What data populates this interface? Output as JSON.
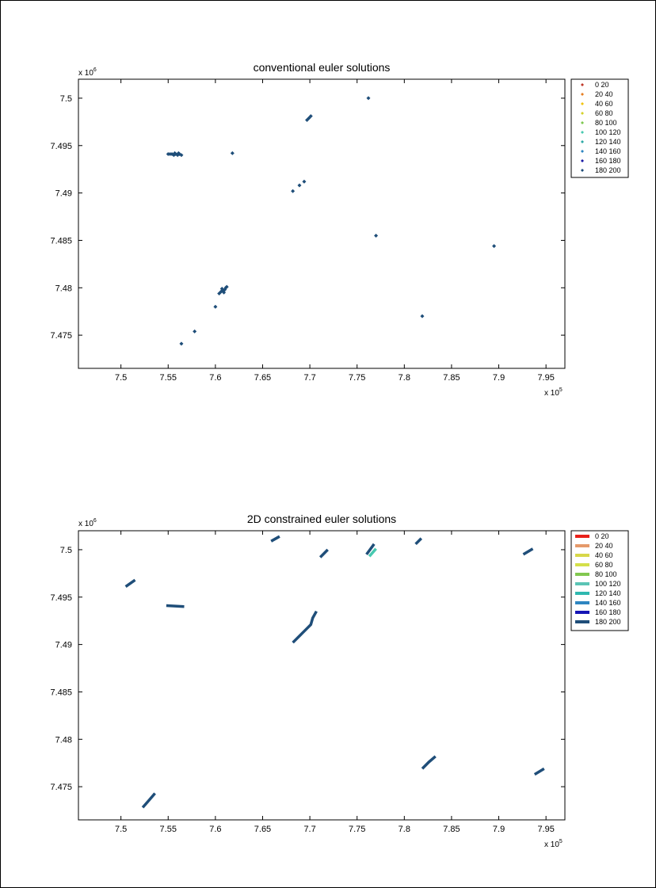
{
  "figure": {
    "colors": {
      "background": "#ffffff",
      "border": "#000000",
      "axis": "#000000",
      "marker": "#1f4e79"
    }
  },
  "chart_data": [
    {
      "type": "scatter",
      "title": "conventional euler solutions",
      "x_exponent_label": "x 10",
      "x_exponent": "5",
      "y_exponent_label": "x 10",
      "y_exponent": "6",
      "xlim": [
        7.455,
        7.97
      ],
      "ylim": [
        7.4715,
        7.502
      ],
      "xticks": [
        7.5,
        7.55,
        7.6,
        7.65,
        7.7,
        7.75,
        7.8,
        7.85,
        7.9,
        7.95
      ],
      "xtick_labels": [
        "7.5",
        "7.55",
        "7.6",
        "7.65",
        "7.7",
        "7.75",
        "7.8",
        "7.85",
        "7.9",
        "7.95"
      ],
      "yticks": [
        7.475,
        7.48,
        7.485,
        7.49,
        7.495,
        7.5
      ],
      "ytick_labels": [
        "7.475",
        "7.48",
        "7.485",
        "7.49",
        "7.495",
        "7.5"
      ],
      "grid": false,
      "legend_position": "outside-right-top",
      "legend_style": "markers",
      "legend": [
        {
          "label": "0  20",
          "color": "#c0392b"
        },
        {
          "label": "20  40",
          "color": "#e67e22"
        },
        {
          "label": "40  60",
          "color": "#f1c40f"
        },
        {
          "label": "60  80",
          "color": "#d4d12a"
        },
        {
          "label": "80  100",
          "color": "#7ec850"
        },
        {
          "label": "100  120",
          "color": "#48c9b0"
        },
        {
          "label": "120  140",
          "color": "#2eaaa6"
        },
        {
          "label": "140  160",
          "color": "#2e86c1"
        },
        {
          "label": "160  180",
          "color": "#1a1aa6"
        },
        {
          "label": "180  200",
          "color": "#1f4e79"
        }
      ],
      "series": [
        {
          "points": [
            [
              7.55,
              7.4941
            ],
            [
              7.552,
              7.4941
            ],
            [
              7.554,
              7.4941
            ],
            [
              7.556,
              7.494
            ],
            [
              7.558,
              7.4941
            ],
            [
              7.56,
              7.494
            ],
            [
              7.562,
              7.4941
            ],
            [
              7.564,
              7.494
            ],
            [
              7.557,
              7.4942
            ],
            [
              7.561,
              7.4942
            ],
            [
              7.618,
              7.4942
            ],
            [
              7.697,
              7.4977
            ],
            [
              7.699,
              7.4979
            ],
            [
              7.701,
              7.4981
            ],
            [
              7.762,
              7.5
            ],
            [
              7.682,
              7.4902
            ],
            [
              7.689,
              7.4908
            ],
            [
              7.694,
              7.4912
            ],
            [
              7.77,
              7.4855
            ],
            [
              7.895,
              7.4844
            ],
            [
              7.604,
              7.4794
            ],
            [
              7.606,
              7.4796
            ],
            [
              7.608,
              7.4797
            ],
            [
              7.61,
              7.4798
            ],
            [
              7.611,
              7.48
            ],
            [
              7.612,
              7.4801
            ],
            [
              7.607,
              7.4799
            ],
            [
              7.609,
              7.4795
            ],
            [
              7.6,
              7.478
            ],
            [
              7.578,
              7.4754
            ],
            [
              7.564,
              7.4741
            ],
            [
              7.819,
              7.477
            ]
          ]
        }
      ]
    },
    {
      "type": "line",
      "title": "2D constrained euler solutions",
      "x_exponent_label": "x 10",
      "x_exponent": "5",
      "y_exponent_label": "x 10",
      "y_exponent": "6",
      "xlim": [
        7.455,
        7.97
      ],
      "ylim": [
        7.4715,
        7.502
      ],
      "xticks": [
        7.5,
        7.55,
        7.6,
        7.65,
        7.7,
        7.75,
        7.8,
        7.85,
        7.9,
        7.95
      ],
      "xtick_labels": [
        "7.5",
        "7.55",
        "7.6",
        "7.65",
        "7.7",
        "7.75",
        "7.8",
        "7.85",
        "7.9",
        "7.95"
      ],
      "yticks": [
        7.475,
        7.48,
        7.485,
        7.49,
        7.495,
        7.5
      ],
      "ytick_labels": [
        "7.475",
        "7.48",
        "7.485",
        "7.49",
        "7.495",
        "7.5"
      ],
      "grid": false,
      "legend_position": "outside-right-top",
      "legend_style": "lines",
      "legend": [
        {
          "label": "0  20",
          "color": "#e8211a"
        },
        {
          "label": "20  40",
          "color": "#e59a6b"
        },
        {
          "label": "40  60",
          "color": "#d8d84a"
        },
        {
          "label": "60  80",
          "color": "#d4e04a"
        },
        {
          "label": "80  100",
          "color": "#82c850"
        },
        {
          "label": "100  120",
          "color": "#5bc4b5"
        },
        {
          "label": "120  140",
          "color": "#2fb8b0"
        },
        {
          "label": "140  160",
          "color": "#2e86c1"
        },
        {
          "label": "160  180",
          "color": "#1515b5"
        },
        {
          "label": "180  200",
          "color": "#1f4e79"
        }
      ],
      "segments": [
        {
          "color": "#1f4e79",
          "points": [
            [
              7.505,
              7.4961
            ],
            [
              7.515,
              7.4968
            ]
          ]
        },
        {
          "color": "#1f4e79",
          "points": [
            [
              7.548,
              7.4941
            ],
            [
              7.567,
              7.494
            ]
          ]
        },
        {
          "color": "#1f4e79",
          "points": [
            [
              7.659,
              7.5009
            ],
            [
              7.668,
              7.5014
            ]
          ]
        },
        {
          "color": "#1f4e79",
          "points": [
            [
              7.711,
              7.4992
            ],
            [
              7.719,
              7.5
            ]
          ]
        },
        {
          "color": "#1f4e79",
          "points": [
            [
              7.76,
              7.4995
            ],
            [
              7.768,
              7.5006
            ]
          ]
        },
        {
          "color": "#48c9b0",
          "points": [
            [
              7.763,
              7.4993
            ],
            [
              7.77,
              7.5001
            ]
          ]
        },
        {
          "color": "#1f4e79",
          "points": [
            [
              7.812,
              7.5006
            ],
            [
              7.818,
              7.5012
            ]
          ]
        },
        {
          "color": "#1f4e79",
          "points": [
            [
              7.926,
              7.4995
            ],
            [
              7.936,
              7.5001
            ]
          ]
        },
        {
          "color": "#1f4e79",
          "points": [
            [
              7.682,
              7.4902
            ],
            [
              7.69,
              7.491
            ],
            [
              7.697,
              7.4917
            ],
            [
              7.701,
              7.4921
            ],
            [
              7.703,
              7.4928
            ],
            [
              7.707,
              7.4935
            ]
          ]
        },
        {
          "color": "#1f4e79",
          "points": [
            [
              7.523,
              7.4728
            ],
            [
              7.53,
              7.4736
            ],
            [
              7.536,
              7.4743
            ]
          ]
        },
        {
          "color": "#1f4e79",
          "points": [
            [
              7.819,
              7.4769
            ],
            [
              7.826,
              7.4776
            ],
            [
              7.833,
              7.4782
            ]
          ]
        },
        {
          "color": "#1f4e79",
          "points": [
            [
              7.938,
              7.4763
            ],
            [
              7.948,
              7.4769
            ]
          ]
        }
      ]
    }
  ]
}
